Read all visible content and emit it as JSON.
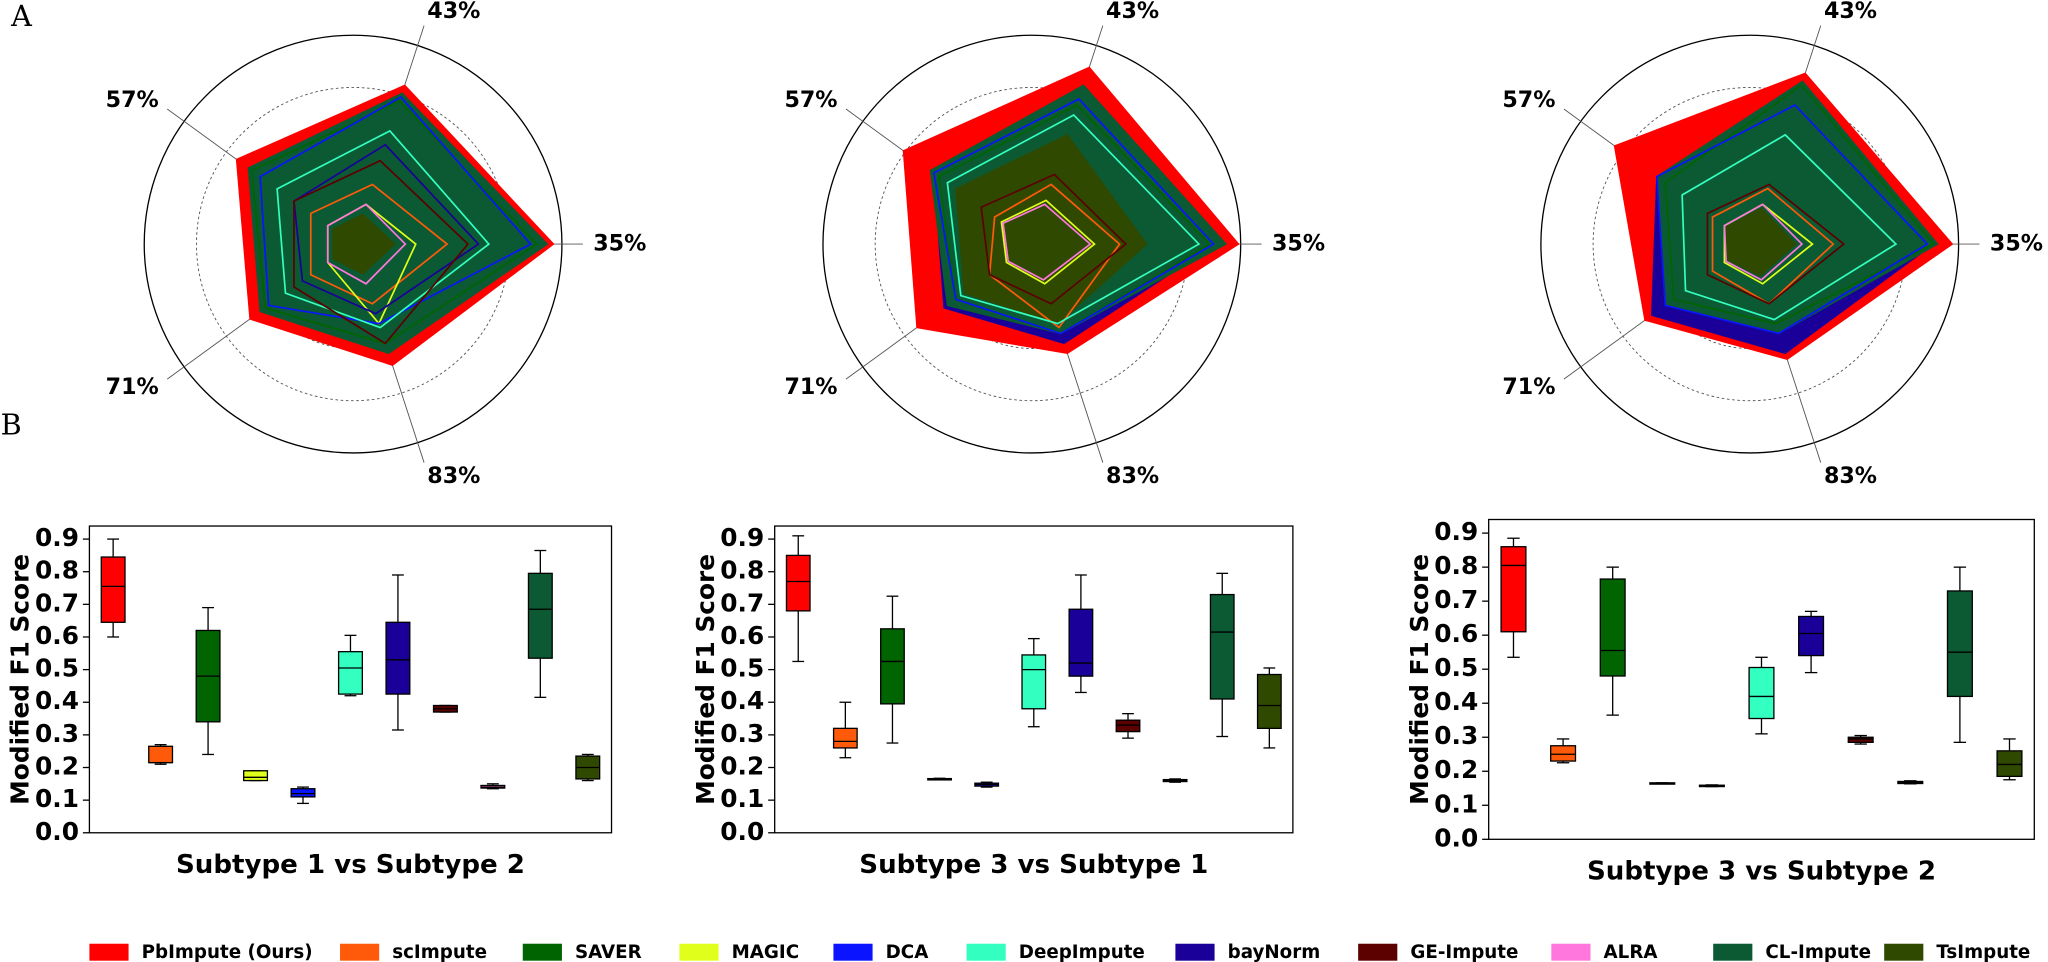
{
  "panels": [
    "A",
    "B"
  ],
  "legend": [
    {
      "name": "PbImpute (Ours)",
      "color": "#ff0000"
    },
    {
      "name": "scImpute",
      "color": "#ff5a0a"
    },
    {
      "name": "SAVER",
      "color": "#006400"
    },
    {
      "name": "MAGIC",
      "color": "#e0ff1a"
    },
    {
      "name": "DCA",
      "color": "#0a14ff"
    },
    {
      "name": "DeepImpute",
      "color": "#33ffc0"
    },
    {
      "name": "bayNorm",
      "color": "#1a0099"
    },
    {
      "name": "GE-Impute",
      "color": "#5c0000"
    },
    {
      "name": "ALRA",
      "color": "#ff77dd"
    },
    {
      "name": "CL-Impute",
      "color": "#0b5a33"
    },
    {
      "name": "TsImpute",
      "color": "#2f4a00"
    }
  ],
  "chart_data": [
    {
      "type": "radar",
      "categories": [
        "35%",
        "43%",
        "57%",
        "71%",
        "83%"
      ],
      "rlim": [
        0,
        1
      ],
      "rticks": [
        0.25,
        0.5,
        0.75,
        1
      ],
      "filled": [
        0,
        9,
        10
      ],
      "series": [
        {
          "values": [
            0.96,
            0.8,
            0.69,
            0.61,
            0.61
          ]
        },
        {
          "values": [
            0.45,
            0.3,
            0.25,
            0.25,
            0.3
          ]
        },
        {
          "values": [
            0.88,
            0.72,
            0.6,
            0.52,
            0.5
          ]
        },
        {
          "values": [
            0.3,
            0.2,
            0.15,
            0.15,
            0.4
          ]
        },
        {
          "values": [
            0.85,
            0.74,
            0.55,
            0.5,
            0.4
          ]
        },
        {
          "values": [
            0.65,
            0.57,
            0.45,
            0.4,
            0.42
          ]
        },
        {
          "values": [
            0.6,
            0.5,
            0.35,
            0.3,
            0.35
          ]
        },
        {
          "values": [
            0.55,
            0.42,
            0.35,
            0.35,
            0.5
          ]
        },
        {
          "values": [
            0.25,
            0.2,
            0.15,
            0.15,
            0.2
          ]
        },
        {
          "values": [
            0.93,
            0.76,
            0.62,
            0.55,
            0.55
          ]
        },
        {
          "values": [
            0.2,
            0.15,
            0.12,
            0.12,
            0.15
          ]
        }
      ]
    },
    {
      "type": "radar",
      "categories": [
        "35%",
        "43%",
        "57%",
        "71%",
        "83%"
      ],
      "rlim": [
        0,
        1
      ],
      "rticks": [
        0.25,
        0.5,
        0.75,
        1
      ],
      "filled": [
        0,
        6,
        9,
        10
      ],
      "series": [
        {
          "values": [
            0.99,
            0.89,
            0.76,
            0.68,
            0.55
          ]
        },
        {
          "values": [
            0.42,
            0.3,
            0.22,
            0.25,
            0.42
          ]
        },
        {
          "values": [
            0.85,
            0.7,
            0.55,
            0.45,
            0.45
          ]
        },
        {
          "values": [
            0.3,
            0.22,
            0.18,
            0.15,
            0.2
          ]
        },
        {
          "values": [
            0.87,
            0.73,
            0.58,
            0.45,
            0.45
          ]
        },
        {
          "values": [
            0.8,
            0.65,
            0.5,
            0.42,
            0.4
          ]
        },
        {
          "values": [
            0.88,
            0.75,
            0.58,
            0.52,
            0.5
          ]
        },
        {
          "values": [
            0.45,
            0.35,
            0.3,
            0.25,
            0.3
          ]
        },
        {
          "values": [
            0.28,
            0.2,
            0.17,
            0.14,
            0.18
          ]
        },
        {
          "values": [
            0.93,
            0.8,
            0.6,
            0.5,
            0.45
          ]
        },
        {
          "values": [
            0.55,
            0.55,
            0.45,
            0.4,
            0.4
          ]
        }
      ]
    },
    {
      "type": "radar",
      "categories": [
        "35%",
        "43%",
        "57%",
        "71%",
        "83%"
      ],
      "rlim": [
        0,
        1
      ],
      "rticks": [
        0.25,
        0.5,
        0.75,
        1
      ],
      "filled": [
        0,
        6,
        9,
        10
      ],
      "series": [
        {
          "values": [
            0.97,
            0.86,
            0.8,
            0.62,
            0.58
          ]
        },
        {
          "values": [
            0.4,
            0.28,
            0.22,
            0.22,
            0.3
          ]
        },
        {
          "values": [
            0.88,
            0.8,
            0.5,
            0.45,
            0.4
          ]
        },
        {
          "values": [
            0.3,
            0.2,
            0.15,
            0.15,
            0.2
          ]
        },
        {
          "values": [
            0.85,
            0.7,
            0.55,
            0.5,
            0.45
          ]
        },
        {
          "values": [
            0.7,
            0.55,
            0.4,
            0.38,
            0.38
          ]
        },
        {
          "values": [
            0.88,
            0.7,
            0.55,
            0.58,
            0.55
          ]
        },
        {
          "values": [
            0.45,
            0.3,
            0.25,
            0.25,
            0.3
          ]
        },
        {
          "values": [
            0.25,
            0.2,
            0.15,
            0.14,
            0.18
          ]
        },
        {
          "values": [
            0.9,
            0.82,
            0.55,
            0.5,
            0.45
          ]
        },
        {
          "values": [
            0.22,
            0.18,
            0.14,
            0.13,
            0.16
          ]
        }
      ]
    },
    {
      "type": "box",
      "xlabel": "Subtype 1 vs Subtype 2",
      "ylabel": "Modified F1 Score",
      "ylim": [
        0,
        0.94
      ],
      "yticks": [
        {
          "value": 0,
          "label": "0.0"
        },
        0.1,
        0.2,
        0.3,
        0.4,
        0.5,
        0.6,
        0.7,
        0.8,
        0.9
      ],
      "boxes": [
        {
          "min": 0.6,
          "q1": 0.645,
          "median": 0.755,
          "q3": 0.845,
          "max": 0.9
        },
        {
          "min": 0.21,
          "q1": 0.215,
          "median": 0.215,
          "q3": 0.265,
          "max": 0.27
        },
        {
          "min": 0.24,
          "q1": 0.34,
          "median": 0.48,
          "q3": 0.62,
          "max": 0.69
        },
        {
          "min": 0.16,
          "q1": 0.16,
          "median": 0.17,
          "q3": 0.19,
          "max": 0.19
        },
        {
          "min": 0.09,
          "q1": 0.11,
          "median": 0.12,
          "q3": 0.135,
          "max": 0.14
        },
        {
          "min": 0.42,
          "q1": 0.425,
          "median": 0.505,
          "q3": 0.555,
          "max": 0.605
        },
        {
          "min": 0.315,
          "q1": 0.425,
          "median": 0.53,
          "q3": 0.645,
          "max": 0.79
        },
        {
          "min": 0.37,
          "q1": 0.37,
          "median": 0.38,
          "q3": 0.39,
          "max": 0.39
        },
        {
          "min": 0.135,
          "q1": 0.137,
          "median": 0.14,
          "q3": 0.145,
          "max": 0.15
        },
        {
          "min": 0.415,
          "q1": 0.535,
          "median": 0.685,
          "q3": 0.795,
          "max": 0.865
        },
        {
          "min": 0.16,
          "q1": 0.165,
          "median": 0.2,
          "q3": 0.235,
          "max": 0.24
        }
      ]
    },
    {
      "type": "box",
      "xlabel": "Subtype 3 vs Subtype 1",
      "ylabel": "Modified F1 Score",
      "ylim": [
        0,
        0.94
      ],
      "yticks": [
        {
          "value": 0,
          "label": "0.0"
        },
        0.1,
        0.2,
        0.3,
        0.4,
        0.5,
        0.6,
        0.7,
        0.8,
        0.9
      ],
      "boxes": [
        {
          "min": 0.525,
          "q1": 0.68,
          "median": 0.77,
          "q3": 0.85,
          "max": 0.91
        },
        {
          "min": 0.23,
          "q1": 0.26,
          "median": 0.28,
          "q3": 0.32,
          "max": 0.4
        },
        {
          "min": 0.275,
          "q1": 0.395,
          "median": 0.525,
          "q3": 0.625,
          "max": 0.725
        },
        {
          "min": 0.163,
          "q1": 0.164,
          "median": 0.165,
          "q3": 0.166,
          "max": 0.167
        },
        {
          "min": 0.14,
          "q1": 0.143,
          "median": 0.148,
          "q3": 0.152,
          "max": 0.155
        },
        {
          "min": 0.325,
          "q1": 0.38,
          "median": 0.5,
          "q3": 0.545,
          "max": 0.595
        },
        {
          "min": 0.43,
          "q1": 0.48,
          "median": 0.52,
          "q3": 0.685,
          "max": 0.79
        },
        {
          "min": 0.29,
          "q1": 0.31,
          "median": 0.33,
          "q3": 0.345,
          "max": 0.365
        },
        {
          "min": 0.155,
          "q1": 0.157,
          "median": 0.16,
          "q3": 0.163,
          "max": 0.165
        },
        {
          "min": 0.295,
          "q1": 0.41,
          "median": 0.615,
          "q3": 0.73,
          "max": 0.795
        },
        {
          "min": 0.26,
          "q1": 0.32,
          "median": 0.39,
          "q3": 0.485,
          "max": 0.505
        }
      ]
    },
    {
      "type": "box",
      "xlabel": "Subtype 3 vs Subtype 2",
      "ylabel": "Modified F1 Score",
      "ylim": [
        0,
        0.94
      ],
      "yticks": [
        {
          "value": 0,
          "label": "0.0"
        },
        0.1,
        0.2,
        0.3,
        0.4,
        0.5,
        0.6,
        0.7,
        0.8,
        0.9
      ],
      "boxes": [
        {
          "min": 0.535,
          "q1": 0.61,
          "median": 0.805,
          "q3": 0.86,
          "max": 0.885
        },
        {
          "min": 0.225,
          "q1": 0.23,
          "median": 0.25,
          "q3": 0.275,
          "max": 0.295
        },
        {
          "min": 0.365,
          "q1": 0.48,
          "median": 0.555,
          "q3": 0.765,
          "max": 0.8
        },
        {
          "min": 0.164,
          "q1": 0.164,
          "median": 0.165,
          "q3": 0.166,
          "max": 0.166
        },
        {
          "min": 0.155,
          "q1": 0.155,
          "median": 0.157,
          "q3": 0.159,
          "max": 0.16
        },
        {
          "min": 0.31,
          "q1": 0.355,
          "median": 0.42,
          "q3": 0.505,
          "max": 0.535
        },
        {
          "min": 0.49,
          "q1": 0.54,
          "median": 0.605,
          "q3": 0.655,
          "max": 0.67
        },
        {
          "min": 0.28,
          "q1": 0.285,
          "median": 0.295,
          "q3": 0.3,
          "max": 0.305
        },
        {
          "min": 0.163,
          "q1": 0.164,
          "median": 0.167,
          "q3": 0.17,
          "max": 0.172
        },
        {
          "min": 0.285,
          "q1": 0.42,
          "median": 0.55,
          "q3": 0.73,
          "max": 0.8
        },
        {
          "min": 0.175,
          "q1": 0.185,
          "median": 0.22,
          "q3": 0.26,
          "max": 0.295
        }
      ]
    }
  ]
}
